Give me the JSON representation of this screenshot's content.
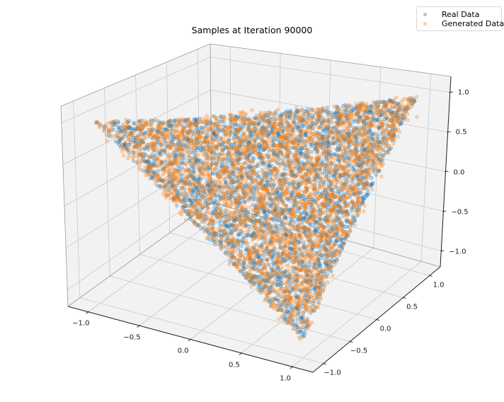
{
  "chart_data": {
    "type": "scatter",
    "projection": "3d",
    "title": "Samples at Iteration 90000",
    "view": {
      "elev_deg": 30,
      "azim_deg": -60,
      "proj_type": "persp"
    },
    "axes": {
      "xlim": [
        -1.2,
        1.2
      ],
      "ylim": [
        -1.2,
        1.2
      ],
      "zlim": [
        -1.2,
        1.2
      ],
      "xticks": [
        -1.0,
        -0.5,
        0.0,
        0.5,
        1.0
      ],
      "yticks": [
        -1.0,
        -0.5,
        0.0,
        0.5,
        1.0
      ],
      "zticks": [
        -1.0,
        -0.5,
        0.0,
        0.5,
        1.0
      ],
      "xtick_labels": [
        "−1.0",
        "−0.5",
        "0.0",
        "0.5",
        "1.0"
      ],
      "ytick_labels": [
        "−1.0",
        "−0.5",
        "0.0",
        "0.5",
        "1.0"
      ],
      "ztick_labels": [
        "−1.0",
        "−0.5",
        "0.0",
        "0.5",
        "1.0"
      ],
      "grid": true,
      "pane_color": "#f2f2f3",
      "grid_color": "#c9c9c9",
      "pane_edge_color": "#9a9a9a",
      "axis_line_color": "#1f1f1f",
      "tick_label_color": "#1a1a1a"
    },
    "series": [
      {
        "name": "Real Data",
        "color": "#1f77b4",
        "marker": "o",
        "n_points": 3600,
        "marker_radius_px": 2.3,
        "fill_alpha": 0.25,
        "edge_alpha": 0.38,
        "distribution": "uniform on the planar 2-simplex x − y + z = 1 clipped to the cube [−1,1]³",
        "triangle_vertices": [
          [
            -1,
            -1,
            1
          ],
          [
            1,
            1,
            1
          ],
          [
            1,
            -1,
            -1
          ]
        ],
        "jitter_sigma": 0.0,
        "rng_seed": 42
      },
      {
        "name": "Generated Data",
        "color": "#ff7f0e",
        "marker": "o",
        "n_points": 3600,
        "marker_radius_px": 2.3,
        "fill_alpha": 0.25,
        "edge_alpha": 0.38,
        "distribution": "uniform on the planar 2-simplex x − y + z = 1 clipped to the cube [−1,1]³ (GAN samples, slight off-plane noise)",
        "triangle_vertices": [
          [
            -1,
            -1,
            1
          ],
          [
            1,
            1,
            1
          ],
          [
            1,
            -1,
            -1
          ]
        ],
        "jitter_sigma": 0.02,
        "rng_seed": 1337
      }
    ],
    "legend": {
      "loc": "upper right",
      "labels": [
        "Real Data",
        "Generated Data"
      ],
      "marker_alpha": 0.4
    }
  }
}
